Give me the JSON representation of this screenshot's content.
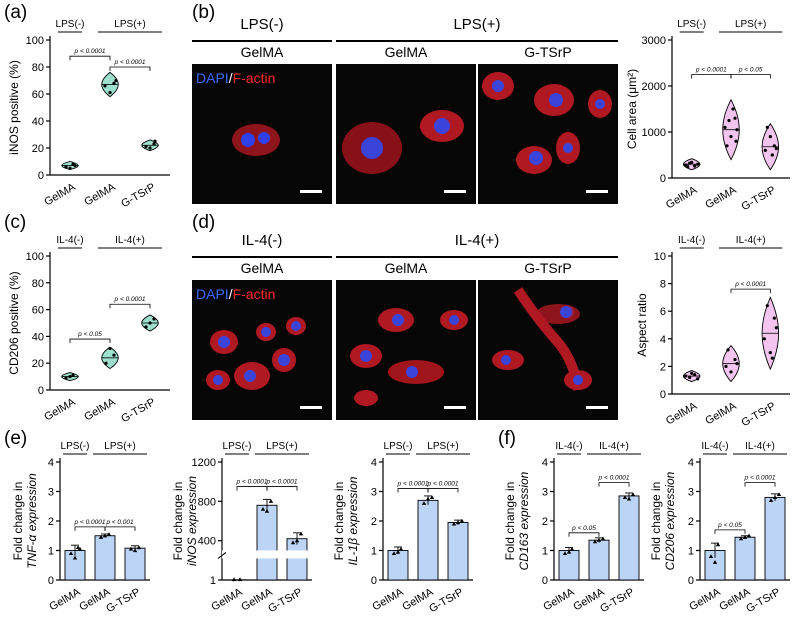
{
  "panels": {
    "a": {
      "label": "(a)",
      "ylabel": "iNOS positive (%)",
      "yticks": [
        "0",
        "20",
        "40",
        "60",
        "80",
        "100"
      ],
      "groups": [
        "LPS(-)",
        "LPS(+)"
      ],
      "xcats": [
        "GelMA",
        "GelMA",
        "G-TSrP"
      ],
      "pvals": [
        "p < 0.0001",
        "p < 0.0001"
      ],
      "color": "#9de0cd"
    },
    "b": {
      "label": "(b)",
      "cond_left": "LPS(-)",
      "cond_right": "LPS(+)",
      "materials": [
        "GelMA",
        "GelMA",
        "G-TSrP"
      ],
      "stain": {
        "dapi": "DAPI",
        "sep": "/",
        "factin": "F-actin"
      },
      "chart": {
        "ylabel": "Cell area (μm²)",
        "yticks": [
          "0",
          "1000",
          "2000",
          "3000"
        ],
        "groups": [
          "LPS(-)",
          "LPS(+)"
        ],
        "xcats": [
          "GelMA",
          "GelMA",
          "G-TSrP"
        ],
        "pvals": [
          "p < 0.0001",
          "p < 0.05"
        ],
        "color": "#f2c4ee"
      }
    },
    "c": {
      "label": "(c)",
      "ylabel": "CD206 positive (%)",
      "yticks": [
        "0",
        "20",
        "40",
        "60",
        "80",
        "100"
      ],
      "groups": [
        "IL-4(-)",
        "IL-4(+)"
      ],
      "xcats": [
        "GelMA",
        "GelMA",
        "G-TSrP"
      ],
      "pvals": [
        "p < 0.05",
        "p < 0.0001"
      ],
      "color": "#9de0cd"
    },
    "d": {
      "label": "(d)",
      "cond_left": "IL-4(-)",
      "cond_right": "IL-4(+)",
      "materials": [
        "GelMA",
        "GelMA",
        "G-TSrP"
      ],
      "stain": {
        "dapi": "DAPI",
        "sep": "/",
        "factin": "F-actin"
      },
      "chart": {
        "ylabel": "Aspect ratio",
        "yticks": [
          "0",
          "2",
          "4",
          "6",
          "8",
          "10"
        ],
        "groups": [
          "IL-4(-)",
          "IL-4(+)"
        ],
        "xcats": [
          "GelMA",
          "GelMA",
          "G-TSrP"
        ],
        "pvals": [
          "p < 0.0001"
        ],
        "color": "#f2c4ee"
      }
    },
    "e": {
      "label": "(e)",
      "tnf": {
        "ylabel1": "Fold change in",
        "ylabel2": "TNF-α expression",
        "yticks": [
          "0",
          "1",
          "2",
          "3",
          "4"
        ],
        "groups": [
          "LPS(-)",
          "LPS(+)"
        ],
        "xcats": [
          "GelMA",
          "GelMA",
          "G-TSrP"
        ],
        "pvals": [
          "p < 0.0001",
          "p < 0.001"
        ]
      },
      "inos": {
        "ylabel1": "Fold change in",
        "ylabel2": "iNOS expression",
        "yticks": [
          "1",
          "400",
          "800",
          "1200"
        ],
        "groups": [
          "LPS(-)",
          "LPS(+)"
        ],
        "xcats": [
          "GelMA",
          "GelMA",
          "G-TSrP"
        ],
        "pvals": [
          "p < 0.0001",
          "p < 0.0001"
        ]
      },
      "il1b": {
        "ylabel1": "Fold change in",
        "ylabel2": "IL-1β expression",
        "yticks": [
          "0",
          "1",
          "2",
          "3",
          "4"
        ],
        "groups": [
          "LPS(-)",
          "LPS(+)"
        ],
        "xcats": [
          "GelMA",
          "GelMA",
          "G-TSrP"
        ],
        "pvals": [
          "p < 0.0001",
          "p < 0.0001"
        ]
      }
    },
    "f": {
      "label": "(f)",
      "cd163": {
        "ylabel1": "Fold change in",
        "ylabel2": "CD163 expression",
        "yticks": [
          "0",
          "1",
          "2",
          "3",
          "4"
        ],
        "groups": [
          "IL-4(-)",
          "IL-4(+)"
        ],
        "xcats": [
          "GelMA",
          "GelMA",
          "G-TSrP"
        ],
        "pvals": [
          "p < 0.05",
          "p < 0.0001"
        ]
      },
      "cd206": {
        "ylabel1": "Fold change in",
        "ylabel2": "CD206 expression",
        "yticks": [
          "0",
          "1",
          "2",
          "3",
          "4"
        ],
        "groups": [
          "IL-4(-)",
          "IL-4(+)"
        ],
        "xcats": [
          "GelMA",
          "GelMA",
          "G-TSrP"
        ],
        "pvals": [
          "p < 0.05",
          "p < 0.0001"
        ]
      }
    }
  },
  "chart_data": [
    {
      "id": "a",
      "type": "violin",
      "categories": [
        "GelMA",
        "GelMA",
        "G-TSrP"
      ],
      "values": [
        7,
        67,
        22
      ],
      "ylabel": "iNOS positive (%)",
      "ylim": [
        0,
        100
      ]
    },
    {
      "id": "b",
      "type": "violin",
      "categories": [
        "GelMA",
        "GelMA",
        "G-TSrP"
      ],
      "values": [
        300,
        1050,
        680
      ],
      "ylabel": "Cell area (μm²)",
      "ylim": [
        0,
        3000
      ]
    },
    {
      "id": "c",
      "type": "violin",
      "categories": [
        "GelMA",
        "GelMA",
        "G-TSrP"
      ],
      "values": [
        10,
        24,
        50
      ],
      "ylabel": "CD206 positive (%)",
      "ylim": [
        0,
        100
      ]
    },
    {
      "id": "d",
      "type": "violin",
      "categories": [
        "GelMA",
        "GelMA",
        "G-TSrP"
      ],
      "values": [
        1.3,
        2.2,
        4.4
      ],
      "ylabel": "Aspect ratio",
      "ylim": [
        0,
        10
      ]
    },
    {
      "id": "e1",
      "type": "bar",
      "categories": [
        "GelMA",
        "GelMA",
        "G-TSrP"
      ],
      "values": [
        1.0,
        1.5,
        1.08
      ],
      "ylim": [
        0,
        4
      ]
    },
    {
      "id": "e2",
      "type": "bar",
      "categories": [
        "GelMA",
        "GelMA",
        "G-TSrP"
      ],
      "values": [
        1,
        760,
        420
      ],
      "ylim": [
        0,
        1200
      ]
    },
    {
      "id": "e3",
      "type": "bar",
      "categories": [
        "GelMA",
        "GelMA",
        "G-TSrP"
      ],
      "values": [
        1.0,
        2.7,
        1.95
      ],
      "ylim": [
        0,
        4
      ]
    },
    {
      "id": "f1",
      "type": "bar",
      "categories": [
        "GelMA",
        "GelMA",
        "G-TSrP"
      ],
      "values": [
        1.0,
        1.35,
        2.85
      ],
      "ylim": [
        0,
        4
      ]
    },
    {
      "id": "f2",
      "type": "bar",
      "categories": [
        "GelMA",
        "GelMA",
        "G-TSrP"
      ],
      "values": [
        1.0,
        1.45,
        2.8
      ],
      "ylim": [
        0,
        4
      ]
    }
  ]
}
